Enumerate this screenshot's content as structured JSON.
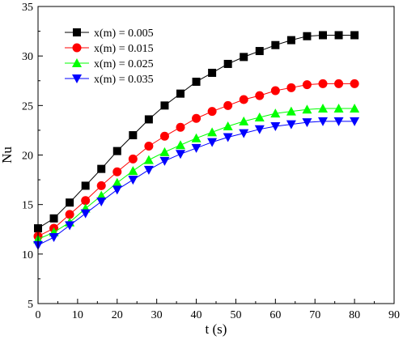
{
  "chart_data": {
    "type": "line",
    "xlabel": "t (s)",
    "ylabel": "Nu",
    "xlim": [
      0,
      90
    ],
    "ylim": [
      5,
      35
    ],
    "xticks": [
      0,
      10,
      20,
      30,
      40,
      50,
      60,
      70,
      80,
      90
    ],
    "yticks": [
      5,
      10,
      15,
      20,
      25,
      30,
      35
    ],
    "grid": false,
    "legend_position": "top-left",
    "x": [
      0,
      4,
      8,
      12,
      16,
      20,
      24,
      28,
      32,
      36,
      40,
      44,
      48,
      52,
      56,
      60,
      64,
      68,
      72,
      76,
      80
    ],
    "series": [
      {
        "name": "x(m) = 0.005",
        "color": "#000000",
        "marker": "square",
        "values": [
          12.6,
          13.6,
          15.2,
          16.9,
          18.6,
          20.4,
          22.0,
          23.6,
          25.0,
          26.2,
          27.4,
          28.3,
          29.2,
          29.9,
          30.5,
          31.1,
          31.6,
          32.0,
          32.1,
          32.1,
          32.1
        ]
      },
      {
        "name": "x(m) = 0.015",
        "color": "#ff0000",
        "marker": "circle",
        "values": [
          11.8,
          12.6,
          14.0,
          15.4,
          16.9,
          18.3,
          19.6,
          20.9,
          21.9,
          22.8,
          23.7,
          24.4,
          25.0,
          25.6,
          26.0,
          26.5,
          26.8,
          27.1,
          27.2,
          27.2,
          27.2
        ]
      },
      {
        "name": "x(m) = 0.025",
        "color": "#00ff00",
        "marker": "triangle-up",
        "values": [
          11.5,
          12.2,
          13.2,
          14.6,
          15.9,
          17.2,
          18.4,
          19.5,
          20.3,
          21.0,
          21.7,
          22.3,
          22.9,
          23.4,
          23.8,
          24.2,
          24.4,
          24.6,
          24.7,
          24.7,
          24.7
        ]
      },
      {
        "name": "x(m) = 0.035",
        "color": "#0000ff",
        "marker": "triangle-down",
        "values": [
          10.9,
          11.7,
          12.9,
          14.1,
          15.3,
          16.5,
          17.5,
          18.5,
          19.4,
          20.1,
          20.7,
          21.3,
          21.8,
          22.2,
          22.6,
          22.9,
          23.1,
          23.3,
          23.4,
          23.4,
          23.4
        ]
      }
    ]
  }
}
